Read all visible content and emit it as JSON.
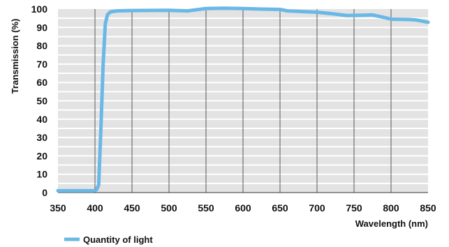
{
  "chart_data": {
    "type": "line",
    "title": "",
    "xlabel": "Wavelength (nm)",
    "ylabel": "Transmission (%)",
    "xlim": [
      350,
      850
    ],
    "ylim": [
      0,
      100
    ],
    "x_ticks": [
      350,
      400,
      450,
      500,
      550,
      600,
      650,
      700,
      750,
      800,
      850
    ],
    "y_ticks": [
      0,
      10,
      20,
      30,
      40,
      50,
      60,
      70,
      80,
      90,
      100
    ],
    "grid": true,
    "legend_position": "bottom-left",
    "series": [
      {
        "name": "Quantity of light",
        "color": "#6ab8e6",
        "points": [
          [
            350,
            1
          ],
          [
            380,
            1
          ],
          [
            398,
            1
          ],
          [
            402,
            1.5
          ],
          [
            405,
            4
          ],
          [
            408,
            35
          ],
          [
            411,
            70
          ],
          [
            414,
            92
          ],
          [
            417,
            97
          ],
          [
            421,
            98.5
          ],
          [
            430,
            99
          ],
          [
            450,
            99.2
          ],
          [
            500,
            99.3
          ],
          [
            525,
            99
          ],
          [
            550,
            100.3
          ],
          [
            575,
            100.5
          ],
          [
            600,
            100.3
          ],
          [
            625,
            100
          ],
          [
            650,
            99.8
          ],
          [
            660,
            99
          ],
          [
            700,
            98.3
          ],
          [
            720,
            97.5
          ],
          [
            740,
            96.5
          ],
          [
            760,
            96.6
          ],
          [
            775,
            96.8
          ],
          [
            790,
            95.5
          ],
          [
            800,
            94.5
          ],
          [
            825,
            94.3
          ],
          [
            835,
            94
          ],
          [
            850,
            92.8
          ]
        ]
      }
    ]
  },
  "colors": {
    "plot_background": "#e3e3e3",
    "gridline": "#ffffff",
    "vertical_gridline": "#5a5a5a",
    "axis": "#333333"
  }
}
